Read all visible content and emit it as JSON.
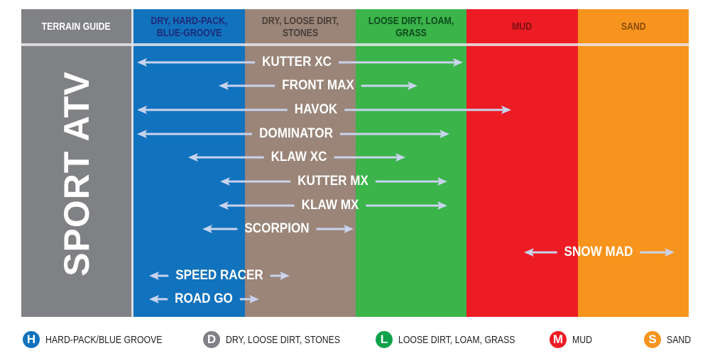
{
  "header": {
    "title": "TERRAIN GUIDE",
    "columns": [
      {
        "label": "DRY, HARD-PACK, BLUE-GROOVE",
        "bg": "#1172bd",
        "fg": "#1e2a78"
      },
      {
        "label": "DRY, LOOSE DIRT, STONES",
        "bg": "#9a8578",
        "fg": "#4a3e38"
      },
      {
        "label": "LOOSE DIRT, LOAM, GRASS",
        "bg": "#3bb44a",
        "fg": "#0d4a1c"
      },
      {
        "label": "MUD",
        "bg": "#ed1c24",
        "fg": "#7a1010"
      },
      {
        "label": "SAND",
        "bg": "#f7941d",
        "fg": "#8a4b0a"
      }
    ]
  },
  "category": "SPORT ATV",
  "colors": {
    "gray": "#808184",
    "arrow": "#c9d3ee"
  },
  "tires": [
    {
      "name": "KUTTER XC"
    },
    {
      "name": "FRONT MAX"
    },
    {
      "name": "HAVOK"
    },
    {
      "name": "DOMINATOR"
    },
    {
      "name": "KLAW XC"
    },
    {
      "name": "KUTTER MX"
    },
    {
      "name": "KLAW MX"
    },
    {
      "name": "SCORPION"
    },
    {
      "name": "SNOW MAD"
    },
    {
      "name": "SPEED RACER"
    },
    {
      "name": "ROAD GO"
    }
  ],
  "legend": [
    {
      "letter": "H",
      "label": "HARD-PACK/BLUE GROOVE",
      "color": "#1172bd"
    },
    {
      "letter": "D",
      "label": "DRY, LOOSE DIRT, STONES",
      "color": "#808184"
    },
    {
      "letter": "L",
      "label": "LOOSE DIRT, LOAM, GRASS",
      "color": "#0ea24a"
    },
    {
      "letter": "M",
      "label": "MUD",
      "color": "#ed1c24"
    },
    {
      "letter": "S",
      "label": "SAND",
      "color": "#f7941d"
    }
  ]
}
